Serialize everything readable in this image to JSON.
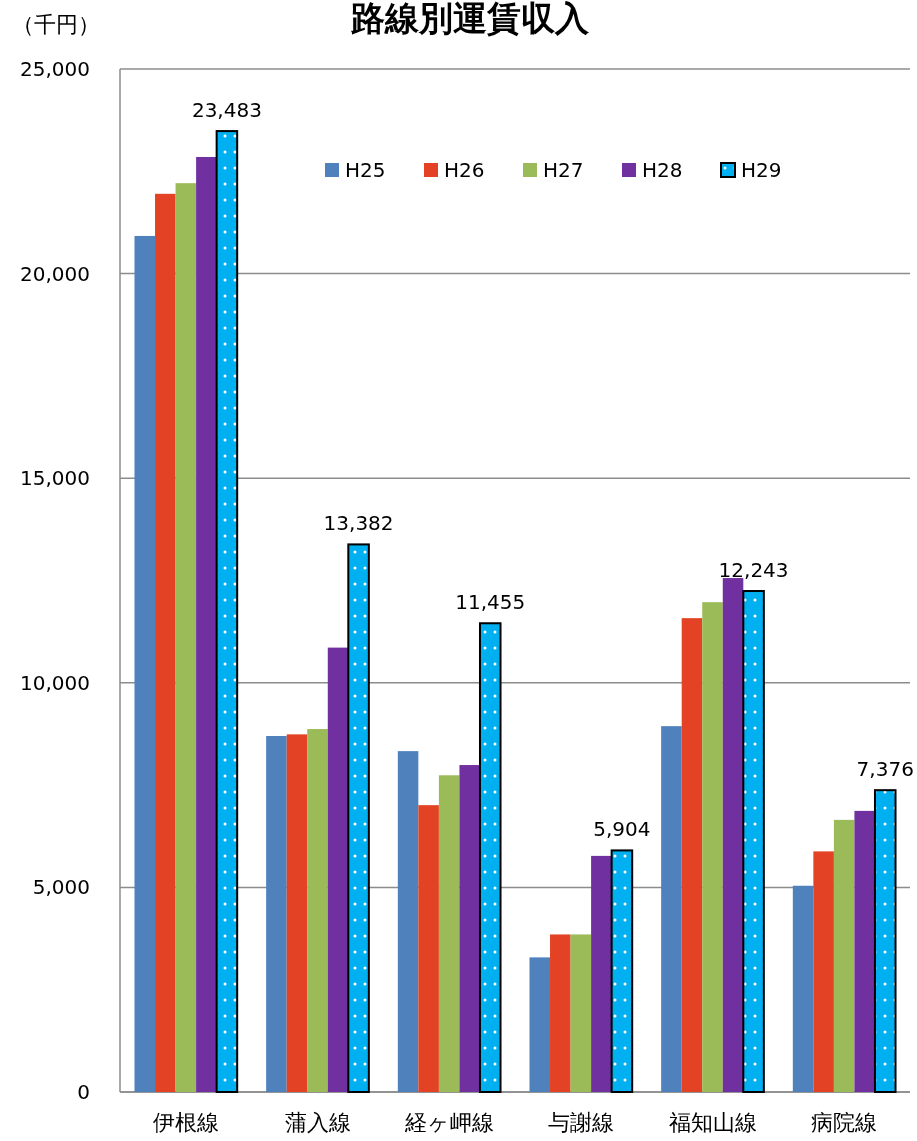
{
  "chart_data": {
    "type": "bar",
    "title": "路線別運賃収入",
    "ylabel": "（千円）",
    "categories": [
      "伊根線",
      "蒲入線",
      "経ヶ岬線",
      "与謝線",
      "福知山線",
      "病院線"
    ],
    "series": [
      {
        "name": "H25",
        "color": "#4f81bd",
        "values": [
          20920,
          8700,
          8330,
          3290,
          8940,
          5040
        ]
      },
      {
        "name": "H26",
        "color": "#e34324",
        "values": [
          21950,
          8740,
          7010,
          3850,
          11580,
          5880
        ]
      },
      {
        "name": "H27",
        "color": "#9bbb59",
        "values": [
          22210,
          8870,
          7740,
          3850,
          11970,
          6650
        ]
      },
      {
        "name": "H28",
        "color": "#7030a0",
        "values": [
          22850,
          10860,
          7990,
          5770,
          12560,
          6870
        ]
      },
      {
        "name": "H29",
        "color": "#00b0f0",
        "values": [
          23483,
          13382,
          11455,
          5904,
          12243,
          7376
        ],
        "value_labels": [
          "23,483",
          "13,382",
          "11,455",
          "5,904",
          "12,243",
          "7,376"
        ]
      }
    ],
    "ylim": [
      0,
      25000
    ],
    "yticks": [
      0,
      {
        "value": 5000,
        "label": "5,000"
      },
      {
        "value": 10000,
        "label": "10,000"
      },
      {
        "value": 15000,
        "label": "15,000"
      },
      {
        "value": 20000,
        "label": "20,000"
      },
      {
        "value": 25000,
        "label": "25,000"
      }
    ],
    "grid": "y",
    "legend": "top right"
  }
}
